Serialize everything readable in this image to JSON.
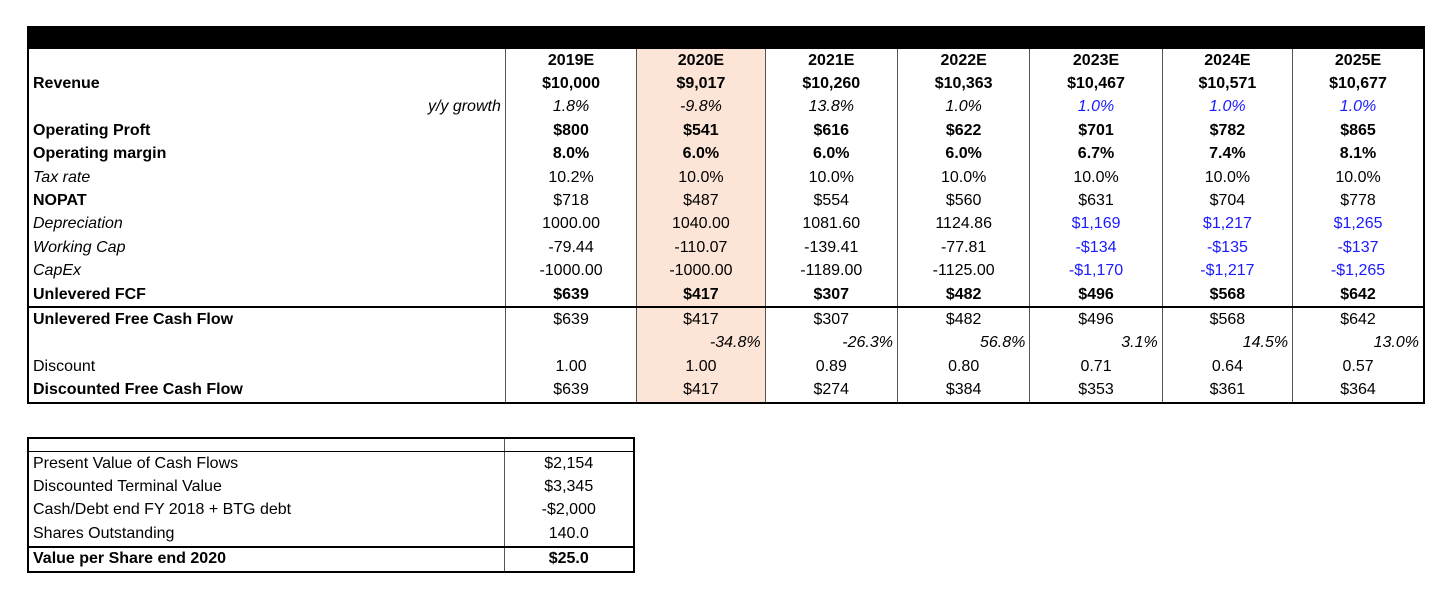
{
  "years": [
    "2019E",
    "2020E",
    "2021E",
    "2022E",
    "2023E",
    "2024E",
    "2025E"
  ],
  "rows": {
    "revenue": {
      "label": "Revenue",
      "values": [
        "$10,000",
        "$9,017",
        "$10,260",
        "$10,363",
        "$10,467",
        "$10,571",
        "$10,677"
      ]
    },
    "yy_growth": {
      "label": "y/y growth",
      "values": [
        "1.8%",
        "-9.8%",
        "13.8%",
        "1.0%",
        "1.0%",
        "1.0%",
        "1.0%"
      ]
    },
    "operating_profit": {
      "label": "Operating Proft",
      "values": [
        "$800",
        "$541",
        "$616",
        "$622",
        "$701",
        "$782",
        "$865"
      ]
    },
    "operating_margin": {
      "label": "Operating margin",
      "values": [
        "8.0%",
        "6.0%",
        "6.0%",
        "6.0%",
        "6.7%",
        "7.4%",
        "8.1%"
      ]
    },
    "tax_rate": {
      "label": "Tax rate",
      "values": [
        "10.2%",
        "10.0%",
        "10.0%",
        "10.0%",
        "10.0%",
        "10.0%",
        "10.0%"
      ]
    },
    "nopat": {
      "label": "NOPAT",
      "values": [
        "$718",
        "$487",
        "$554",
        "$560",
        "$631",
        "$704",
        "$778"
      ]
    },
    "depreciation": {
      "label": "Depreciation",
      "values": [
        "1000.00",
        "1040.00",
        "1081.60",
        "1124.86",
        "$1,169",
        "$1,217",
        "$1,265"
      ]
    },
    "working_cap": {
      "label": "Working Cap",
      "values": [
        "-79.44",
        "-110.07",
        "-139.41",
        "-77.81",
        "-$134",
        "-$135",
        "-$137"
      ]
    },
    "capex": {
      "label": "CapEx",
      "values": [
        "-1000.00",
        "-1000.00",
        "-1189.00",
        "-1125.00",
        "-$1,170",
        "-$1,217",
        "-$1,265"
      ]
    },
    "unlevered_fcf": {
      "label": "Unlevered FCF",
      "values": [
        "$639",
        "$417",
        "$307",
        "$482",
        "$496",
        "$568",
        "$642"
      ]
    },
    "unlevered_free_cash_flow": {
      "label": "Unlevered Free Cash Flow",
      "values": [
        "$639",
        "$417",
        "$307",
        "$482",
        "$496",
        "$568",
        "$642"
      ]
    },
    "fcf_growth": {
      "label": "",
      "values": [
        "",
        "-34.8%",
        "-26.3%",
        "56.8%",
        "3.1%",
        "14.5%",
        "13.0%"
      ]
    },
    "discount": {
      "label": "Discount",
      "values": [
        "1.00",
        "1.00",
        "0.89",
        "0.80",
        "0.71",
        "0.64",
        "0.57"
      ]
    },
    "discounted_fcf": {
      "label": "Discounted Free Cash Flow",
      "values": [
        "$639",
        "$417",
        "$274",
        "$384",
        "$353",
        "$361",
        "$364"
      ]
    }
  },
  "summary": [
    {
      "label": "Present Value of Cash Flows",
      "value": "$2,154"
    },
    {
      "label": "Discounted Terminal Value",
      "value": "$3,345"
    },
    {
      "label": "Cash/Debt end FY 2018 + BTG debt",
      "value": "-$2,000"
    },
    {
      "label": "Shares Outstanding",
      "value": "140.0"
    },
    {
      "label": "Value per Share end 2020",
      "value": "$25.0"
    }
  ],
  "colors": {
    "highlight": "#fce4d6",
    "projection_blue": "#1a1aff",
    "header_bar": "#000000"
  }
}
